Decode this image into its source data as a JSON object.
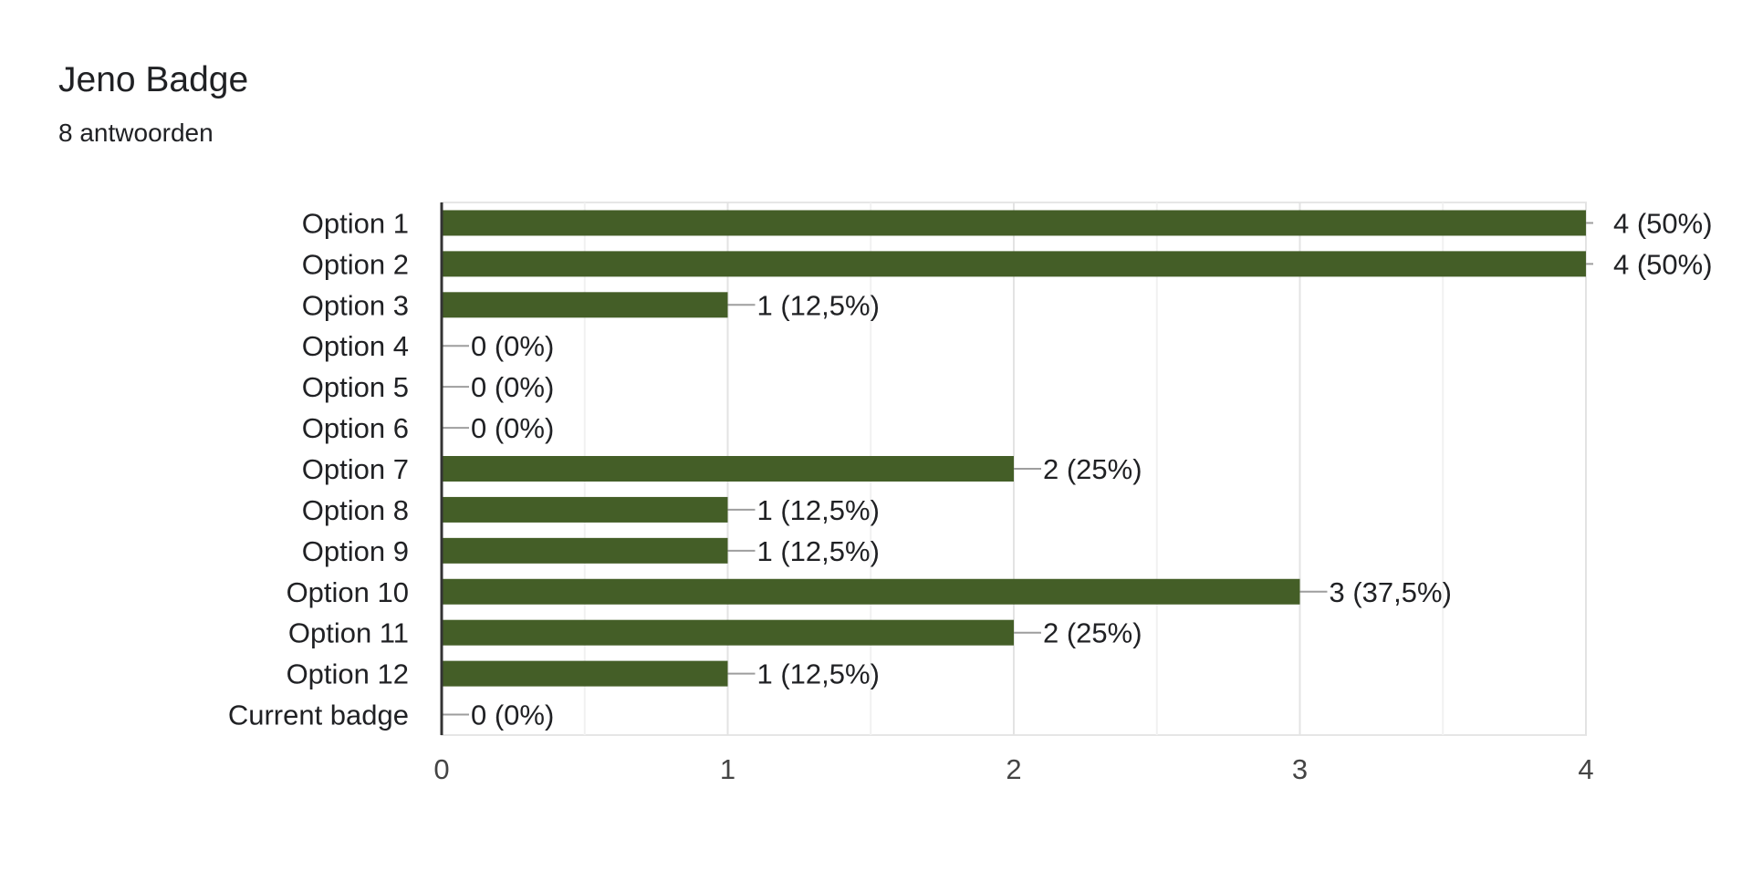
{
  "header": {
    "title": "Jeno Badge",
    "subtitle": "8 antwoorden"
  },
  "colors": {
    "bar": "#445e27",
    "grid": "#e6e6e6",
    "axis": "#333333",
    "leader": "#9e9e9e",
    "text": "#202124"
  },
  "chart_data": {
    "type": "bar",
    "orientation": "horizontal",
    "categories": [
      "Option 1",
      "Option 2",
      "Option 3",
      "Option 4",
      "Option 5",
      "Option 6",
      "Option 7",
      "Option 8",
      "Option 9",
      "Option 10",
      "Option 11",
      "Option 12",
      "Current badge"
    ],
    "values": [
      4,
      4,
      1,
      0,
      0,
      0,
      2,
      1,
      1,
      3,
      2,
      1,
      0
    ],
    "labels": [
      "4 (50%)",
      "4 (50%)",
      "1 (12,5%)",
      "0 (0%)",
      "0 (0%)",
      "0 (0%)",
      "2 (25%)",
      "1 (12,5%)",
      "1 (12,5%)",
      "3 (37,5%)",
      "2 (25%)",
      "1 (12,5%)",
      "0 (0%)"
    ],
    "xticks": [
      "0",
      "1",
      "2",
      "3",
      "4"
    ],
    "xlim": [
      0,
      4
    ],
    "grid": true,
    "title": "Jeno Badge",
    "xlabel": "",
    "ylabel": ""
  }
}
